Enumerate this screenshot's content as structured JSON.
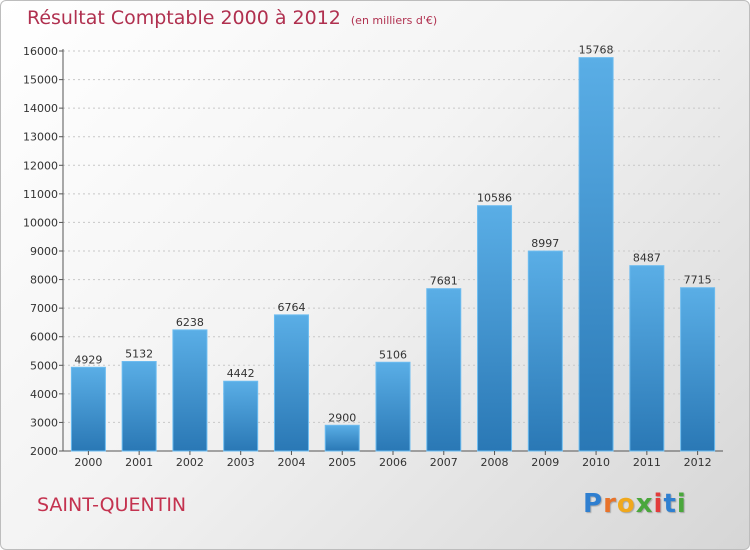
{
  "title": {
    "main": "Résultat Comptable 2000 à 2012",
    "unit": "(en milliers d'€)"
  },
  "city": "SAINT-QUENTIN",
  "logo": {
    "letters": [
      "P",
      "r",
      "o",
      "x",
      "i",
      "t",
      "i"
    ],
    "colors": [
      "#2f7fd0",
      "#e8732a",
      "#f0a81c",
      "#4aa73c",
      "#e23c3c",
      "#2f7fd0",
      "#4aa73c"
    ]
  },
  "colors": {
    "bar_top": "#5aaee6",
    "bar_bottom": "#2a78b5",
    "title": "#b0304f"
  },
  "chart_data": {
    "type": "bar",
    "categories": [
      "2000",
      "2001",
      "2002",
      "2003",
      "2004",
      "2005",
      "2006",
      "2007",
      "2008",
      "2009",
      "2010",
      "2011",
      "2012"
    ],
    "values": [
      4929,
      5132,
      6238,
      4442,
      6764,
      2900,
      5106,
      7681,
      10586,
      8997,
      15768,
      8487,
      7715
    ],
    "data_labels": [
      "4929",
      "5132",
      "6238",
      "4442",
      "6764",
      "2900",
      "5106",
      "7681",
      "10586",
      "8997",
      "15768",
      "8487",
      "7715"
    ],
    "yticks": [
      2000,
      3000,
      4000,
      5000,
      6000,
      7000,
      8000,
      9000,
      10000,
      11000,
      12000,
      13000,
      14000,
      15000,
      16000
    ],
    "ylim": [
      2000,
      16000
    ],
    "grid": "horizontal dashed",
    "title": "Résultat Comptable 2000 à 2012",
    "xlabel": "",
    "ylabel": ""
  }
}
